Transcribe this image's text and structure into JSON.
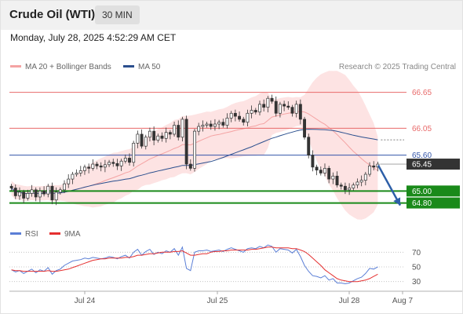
{
  "header": {
    "title": "Crude Oil (WTI)",
    "timeframe": "30 MIN"
  },
  "date": "Monday, July 28, 2025 4:52:29 AM CET",
  "legend": {
    "bb_label": "MA 20 + Bollinger Bands",
    "ma50_label": "MA 50",
    "rsi_label": "RSI",
    "rsi_ma_label": "9MA"
  },
  "credit": "Research © 2025 Trading Central",
  "colors": {
    "bb": "#f4a3a3",
    "bb_band": "#fde3e3",
    "ma50": "#2b4f8e",
    "candle": "#333333",
    "resistance": "#e86a6a",
    "support": "#1a8a1a",
    "pivot": "#3355aa",
    "current": "#333333",
    "rsi": "#5b7fd6",
    "rsi_ma": "#e53030",
    "arrow": "#2d5fa8"
  },
  "chart_data": [
    {
      "type": "candlestick",
      "x_ticks": [
        "Jul 24",
        "Jul 25",
        "Jul 28",
        "Aug 7"
      ],
      "ylim": [
        64.65,
        66.75
      ],
      "levels": [
        {
          "value": 66.65,
          "label": "66.65",
          "kind": "resistance"
        },
        {
          "value": 66.05,
          "label": "66.05",
          "kind": "resistance"
        },
        {
          "value": 65.6,
          "label": "65.60",
          "kind": "pivot"
        },
        {
          "value": 65.45,
          "label": "65.45",
          "kind": "current"
        },
        {
          "value": 65.0,
          "label": "65.00",
          "kind": "support"
        },
        {
          "value": 64.8,
          "label": "64.80",
          "kind": "support"
        }
      ],
      "closes": [
        65.05,
        64.92,
        64.98,
        64.88,
        64.96,
        65.02,
        64.9,
        65.0,
        64.95,
        65.08,
        64.85,
        64.98,
        65.02,
        65.12,
        65.2,
        65.28,
        65.3,
        65.34,
        65.4,
        65.38,
        65.45,
        65.42,
        65.4,
        65.44,
        65.48,
        65.46,
        65.42,
        65.5,
        65.55,
        65.48,
        65.8,
        65.95,
        65.75,
        65.9,
        66.0,
        65.85,
        65.92,
        65.88,
        65.98,
        65.95,
        66.1,
        65.9,
        66.2,
        65.45,
        65.38,
        66.0,
        66.08,
        66.1,
        66.12,
        66.08,
        66.12,
        66.15,
        66.1,
        66.22,
        66.3,
        66.25,
        66.2,
        66.15,
        66.3,
        66.35,
        66.32,
        66.45,
        66.4,
        66.55,
        66.5,
        66.3,
        66.45,
        66.42,
        66.4,
        66.3,
        66.45,
        66.2,
        65.9,
        65.6,
        65.4,
        65.35,
        65.3,
        65.38,
        65.2,
        65.25,
        65.1,
        65.08,
        65.02,
        65.05,
        65.1,
        65.15,
        65.18,
        65.28,
        65.42,
        65.4,
        65.45
      ],
      "rsi": {
        "levels": [
          70,
          50,
          30
        ],
        "values": [
          46,
          43,
          45,
          41,
          44,
          47,
          42,
          46,
          44,
          49,
          40,
          45,
          47,
          52,
          55,
          58,
          59,
          60,
          62,
          61,
          63,
          62,
          61,
          62,
          64,
          63,
          61,
          64,
          66,
          62,
          70,
          74,
          66,
          71,
          74,
          67,
          70,
          68,
          72,
          70,
          75,
          66,
          77,
          48,
          45,
          70,
          72,
          72,
          73,
          71,
          72,
          73,
          71,
          74,
          76,
          74,
          72,
          70,
          75,
          76,
          75,
          78,
          76,
          80,
          78,
          70,
          75,
          74,
          73,
          69,
          74,
          64,
          52,
          44,
          38,
          37,
          35,
          38,
          32,
          34,
          28,
          28,
          27,
          28,
          31,
          34,
          36,
          41,
          48,
          47,
          50
        ],
        "ma9": [
          46,
          45,
          45,
          44,
          44,
          44,
          44,
          44,
          44,
          45,
          44,
          44,
          45,
          46,
          47,
          49,
          51,
          53,
          55,
          57,
          59,
          60,
          61,
          61,
          62,
          62,
          62,
          62,
          63,
          63,
          64,
          66,
          66,
          67,
          68,
          68,
          69,
          70,
          70,
          70,
          71,
          71,
          72,
          69,
          66,
          66,
          67,
          68,
          68,
          70,
          71,
          71,
          72,
          72,
          73,
          73,
          73,
          73,
          73,
          74,
          74,
          75,
          76,
          77,
          77,
          76,
          76,
          76,
          76,
          75,
          75,
          73,
          71,
          67,
          62,
          57,
          52,
          46,
          42,
          38,
          34,
          32,
          31,
          30,
          30,
          30,
          31,
          32,
          34,
          37,
          40
        ]
      }
    }
  ]
}
